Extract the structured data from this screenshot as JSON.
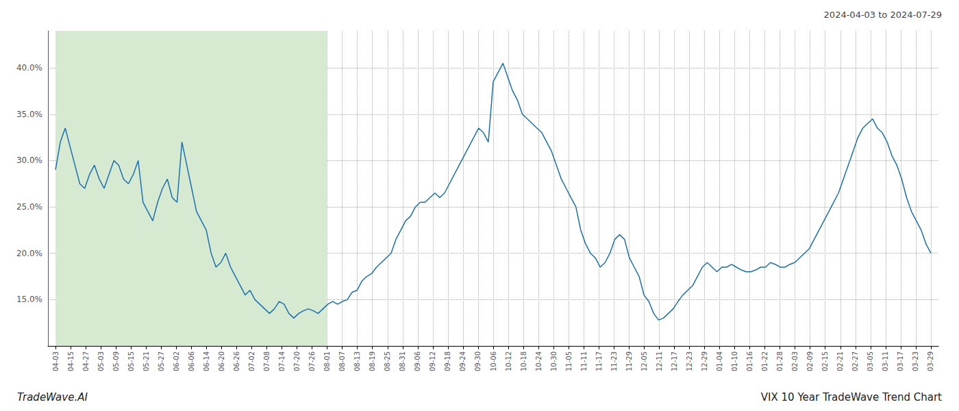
{
  "chart_data": {
    "type": "line",
    "title": "VIX 10 Year TradeWave Trend Chart",
    "subtitle": "2024-04-03 to 2024-07-29",
    "annotations": [
      "TradeWave.AI"
    ],
    "color": "#1a6faf",
    "grid": true,
    "highlight": {
      "from": 0,
      "to": 18,
      "color": "#d5ead0"
    },
    "xlim": [
      -0.5,
      58.5
    ],
    "xticks": [
      {
        "value": 0,
        "label": "04-03"
      },
      {
        "value": 1,
        "label": "04-15"
      },
      {
        "value": 2,
        "label": "04-27"
      },
      {
        "value": 3,
        "label": "05-03"
      },
      {
        "value": 4,
        "label": "05-09"
      },
      {
        "value": 5,
        "label": "05-15"
      },
      {
        "value": 6,
        "label": "05-21"
      },
      {
        "value": 7,
        "label": "05-27"
      },
      {
        "value": 8,
        "label": "06-02"
      },
      {
        "value": 9,
        "label": "06-06"
      },
      {
        "value": 10,
        "label": "06-14"
      },
      {
        "value": 11,
        "label": "06-20"
      },
      {
        "value": 12,
        "label": "06-26"
      },
      {
        "value": 13,
        "label": "07-02"
      },
      {
        "value": 14,
        "label": "07-08"
      },
      {
        "value": 15,
        "label": "07-14"
      },
      {
        "value": 16,
        "label": "07-20"
      },
      {
        "value": 17,
        "label": "07-26"
      },
      {
        "value": 18,
        "label": "08-01"
      },
      {
        "value": 19,
        "label": "08-07"
      },
      {
        "value": 20,
        "label": "08-13"
      },
      {
        "value": 21,
        "label": "08-19"
      },
      {
        "value": 22,
        "label": "08-25"
      },
      {
        "value": 23,
        "label": "08-31"
      },
      {
        "value": 24,
        "label": "09-06"
      },
      {
        "value": 25,
        "label": "09-12"
      },
      {
        "value": 26,
        "label": "09-18"
      },
      {
        "value": 27,
        "label": "09-24"
      },
      {
        "value": 28,
        "label": "09-30"
      },
      {
        "value": 29,
        "label": "10-06"
      },
      {
        "value": 30,
        "label": "10-12"
      },
      {
        "value": 31,
        "label": "10-18"
      },
      {
        "value": 32,
        "label": "10-24"
      },
      {
        "value": 33,
        "label": "10-30"
      },
      {
        "value": 34,
        "label": "11-05"
      },
      {
        "value": 35,
        "label": "11-11"
      },
      {
        "value": 36,
        "label": "11-17"
      },
      {
        "value": 37,
        "label": "11-23"
      },
      {
        "value": 38,
        "label": "11-29"
      },
      {
        "value": 39,
        "label": "12-05"
      },
      {
        "value": 40,
        "label": "12-11"
      },
      {
        "value": 41,
        "label": "12-17"
      },
      {
        "value": 42,
        "label": "12-23"
      },
      {
        "value": 43,
        "label": "12-29"
      },
      {
        "value": 44,
        "label": "01-04"
      },
      {
        "value": 45,
        "label": "01-10"
      },
      {
        "value": 46,
        "label": "01-16"
      },
      {
        "value": 47,
        "label": "01-22"
      },
      {
        "value": 48,
        "label": "01-28"
      },
      {
        "value": 49,
        "label": "02-03"
      },
      {
        "value": 50,
        "label": "02-09"
      },
      {
        "value": 51,
        "label": "02-15"
      },
      {
        "value": 52,
        "label": "02-21"
      },
      {
        "value": 53,
        "label": "02-27"
      },
      {
        "value": 54,
        "label": "03-05"
      },
      {
        "value": 55,
        "label": "03-11"
      },
      {
        "value": 56,
        "label": "03-17"
      },
      {
        "value": 57,
        "label": "03-23"
      },
      {
        "value": 58,
        "label": "03-29"
      }
    ],
    "ylim": [
      0.1,
      0.44
    ],
    "yticks": [
      {
        "value": 0.15,
        "label": "15.0%"
      },
      {
        "value": 0.2,
        "label": "20.0%"
      },
      {
        "value": 0.25,
        "label": "25.0%"
      },
      {
        "value": 0.3,
        "label": "30.0%"
      },
      {
        "value": 0.35,
        "label": "35.0%"
      },
      {
        "value": 0.4,
        "label": "40.0%"
      }
    ],
    "x": [
      0,
      0.3222,
      0.6444,
      0.9667,
      1.2889,
      1.6111,
      1.9333,
      2.2556,
      2.5778,
      2.9,
      3.2222,
      3.5444,
      3.8667,
      4.1889,
      4.5111,
      4.8333,
      5.1556,
      5.4778,
      5.8,
      6.1222,
      6.4444,
      6.7667,
      7.0889,
      7.4111,
      7.7333,
      8.0556,
      8.3778,
      8.7,
      9.0222,
      9.3444,
      9.6667,
      9.9889,
      10.3111,
      10.6333,
      10.9556,
      11.2778,
      11.6,
      11.9222,
      12.2444,
      12.5667,
      12.8889,
      13.2111,
      13.5333,
      13.8556,
      14.1778,
      14.5,
      14.8222,
      15.1444,
      15.4667,
      15.7889,
      16.1111,
      16.4333,
      16.7556,
      17.0778,
      17.4,
      17.7222,
      18.0444,
      18.3667,
      18.6889,
      19.0111,
      19.3333,
      19.6556,
      19.9778,
      20.3,
      20.6222,
      20.9444,
      21.2667,
      21.5889,
      21.9111,
      22.2333,
      22.5556,
      22.8778,
      23.2,
      23.5222,
      23.8444,
      24.1667,
      24.4889,
      24.8111,
      25.1333,
      25.4556,
      25.7778,
      26.1,
      26.4222,
      26.7444,
      27.0667,
      27.3889,
      27.7111,
      28.0333,
      28.3556,
      28.6778,
      29,
      29.3222,
      29.6444,
      29.9667,
      30.2889,
      30.6111,
      30.9333,
      31.2556,
      31.5778,
      31.9,
      32.2222,
      32.5444,
      32.8667,
      33.1889,
      33.5111,
      33.8333,
      34.1556,
      34.4778,
      34.8,
      35.1222,
      35.4444,
      35.7667,
      36.0889,
      36.4111,
      36.7333,
      37.0556,
      37.3778,
      37.7,
      38.0222,
      38.3444,
      38.6667,
      38.9889,
      39.3111,
      39.6333,
      39.9556,
      40.2778,
      40.6,
      40.9222,
      41.2444,
      41.5667,
      41.8889,
      42.2111,
      42.5333,
      42.8556,
      43.1778,
      43.5,
      43.8222,
      44.1444,
      44.4667,
      44.7889,
      45.1111,
      45.4333,
      45.7556,
      46.0778,
      46.4,
      46.7222,
      47.0444,
      47.3667,
      47.6889,
      48.0111,
      48.3333,
      48.6556,
      48.9778,
      49.3,
      49.6222,
      49.9444,
      50.2667,
      50.5889,
      50.9111,
      51.2333,
      51.5556,
      51.8778,
      52.2,
      52.5222,
      52.8444,
      53.1667,
      53.4889,
      53.8111,
      54.1333,
      54.4556,
      54.7778,
      55.1,
      55.4222,
      55.7444,
      56.0667,
      56.3889,
      56.7111,
      57.0333,
      57.3556,
      57.6778,
      58
    ],
    "values": [
      0.29,
      0.32,
      0.335,
      0.315,
      0.295,
      0.275,
      0.27,
      0.285,
      0.295,
      0.28,
      0.27,
      0.285,
      0.3,
      0.295,
      0.28,
      0.275,
      0.285,
      0.3,
      0.255,
      0.245,
      0.235,
      0.255,
      0.27,
      0.28,
      0.26,
      0.255,
      0.32,
      0.295,
      0.27,
      0.245,
      0.235,
      0.225,
      0.2,
      0.185,
      0.19,
      0.2,
      0.185,
      0.175,
      0.165,
      0.155,
      0.16,
      0.15,
      0.145,
      0.14,
      0.135,
      0.14,
      0.148,
      0.145,
      0.135,
      0.13,
      0.135,
      0.138,
      0.14,
      0.138,
      0.135,
      0.14,
      0.145,
      0.148,
      0.145,
      0.148,
      0.15,
      0.158,
      0.16,
      0.17,
      0.175,
      0.178,
      0.185,
      0.19,
      0.195,
      0.2,
      0.215,
      0.225,
      0.235,
      0.24,
      0.25,
      0.255,
      0.255,
      0.26,
      0.265,
      0.26,
      0.265,
      0.275,
      0.285,
      0.295,
      0.305,
      0.315,
      0.325,
      0.335,
      0.33,
      0.32,
      0.385,
      0.395,
      0.405,
      0.39,
      0.375,
      0.365,
      0.35,
      0.345,
      0.34,
      0.335,
      0.33,
      0.32,
      0.31,
      0.295,
      0.28,
      0.27,
      0.26,
      0.25,
      0.225,
      0.21,
      0.2,
      0.195,
      0.185,
      0.19,
      0.2,
      0.215,
      0.22,
      0.215,
      0.195,
      0.185,
      0.175,
      0.155,
      0.148,
      0.135,
      0.128,
      0.13,
      0.135,
      0.14,
      0.148,
      0.155,
      0.16,
      0.165,
      0.175,
      0.185,
      0.19,
      0.185,
      0.18,
      0.185,
      0.185,
      0.188,
      0.185,
      0.182,
      0.18,
      0.18,
      0.182,
      0.185,
      0.185,
      0.19,
      0.188,
      0.185,
      0.185,
      0.188,
      0.19,
      0.195,
      0.2,
      0.205,
      0.215,
      0.225,
      0.235,
      0.245,
      0.255,
      0.265,
      0.28,
      0.295,
      0.31,
      0.325,
      0.335,
      0.34,
      0.345,
      0.335,
      0.33,
      0.32,
      0.305,
      0.295,
      0.28,
      0.26,
      0.245,
      0.235,
      0.225,
      0.21,
      0.2
    ]
  }
}
